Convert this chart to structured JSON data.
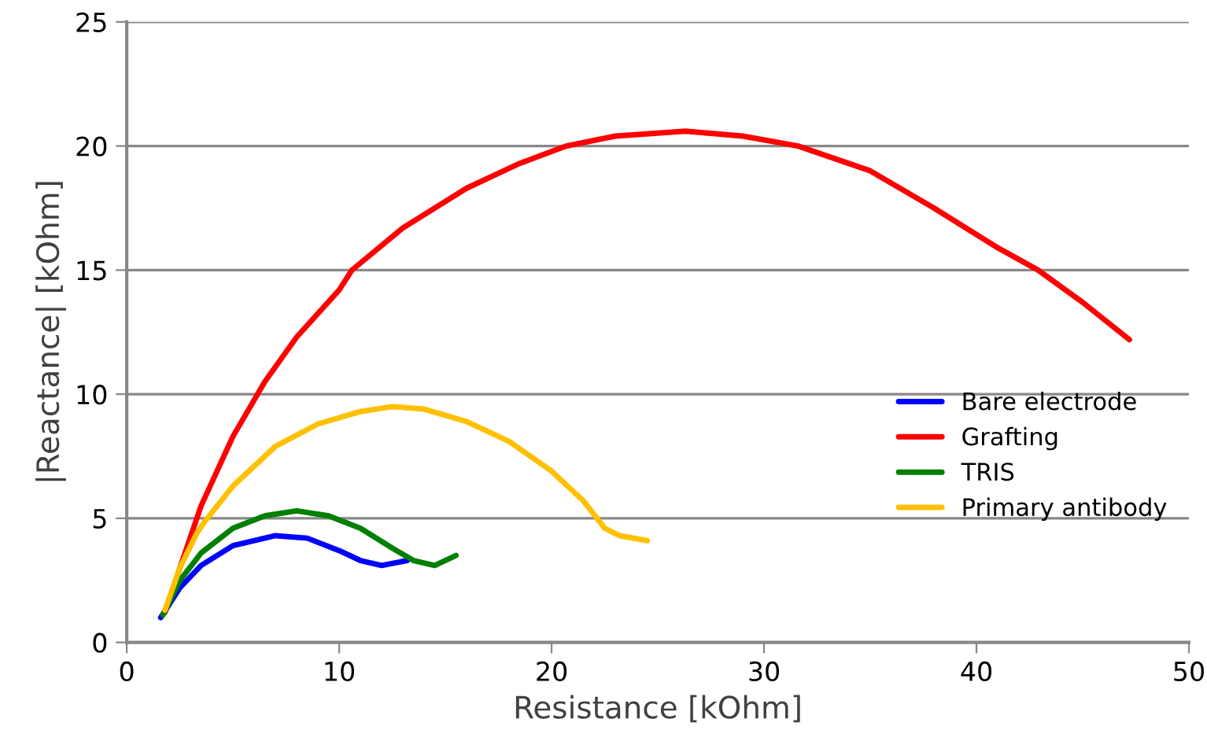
{
  "chart_data": {
    "type": "line",
    "xlabel": "Resistance [kOhm]",
    "ylabel": "|Reactance| [kOhm]",
    "xlim": [
      0,
      50
    ],
    "ylim": [
      0,
      25
    ],
    "xticks": [
      0,
      10,
      20,
      30,
      40,
      50
    ],
    "yticks": [
      0,
      5,
      10,
      15,
      20,
      25
    ],
    "grid": "y",
    "legend": "right",
    "marker": "none",
    "line_style": "solid",
    "series": [
      {
        "name": "Bare electrode",
        "color": "#0000ff",
        "x": [
          1.6,
          2.5,
          3.5,
          5,
          7,
          8.5,
          10,
          11,
          12,
          13.2
        ],
        "values": [
          1.0,
          2.2,
          3.1,
          3.9,
          4.3,
          4.2,
          3.7,
          3.3,
          3.1,
          3.3
        ]
      },
      {
        "name": "Grafting",
        "color": "#ff0000",
        "x": [
          1.8,
          2.5,
          3.5,
          5,
          6.5,
          8,
          10,
          10.6,
          13,
          16,
          18.5,
          20.7,
          23,
          26.3,
          29,
          31.6,
          35,
          38,
          41,
          42.9,
          45,
          47.2
        ],
        "values": [
          1.2,
          3,
          5.5,
          8.3,
          10.5,
          12.3,
          14.2,
          15,
          16.7,
          18.3,
          19.3,
          20,
          20.4,
          20.6,
          20.4,
          20,
          19,
          17.5,
          15.9,
          15,
          13.7,
          12.2
        ]
      },
      {
        "name": "TRIS",
        "color": "#008000",
        "x": [
          1.7,
          2.5,
          3.5,
          5,
          6.5,
          8,
          9.5,
          11,
          12.5,
          13.5,
          14.5,
          15.5
        ],
        "values": [
          1.1,
          2.5,
          3.6,
          4.6,
          5.1,
          5.3,
          5.1,
          4.6,
          3.8,
          3.3,
          3.1,
          3.5
        ]
      },
      {
        "name": "Primary antibody",
        "color": "#ffc000",
        "x": [
          1.8,
          2.5,
          3.3,
          3.7,
          5,
          7,
          9,
          11,
          12.5,
          14,
          16,
          18,
          20,
          21.5,
          22.5,
          23.2,
          24.5
        ],
        "values": [
          1.3,
          3,
          4.4,
          4.9,
          6.3,
          7.9,
          8.8,
          9.3,
          9.5,
          9.4,
          8.9,
          8.1,
          6.9,
          5.7,
          4.6,
          4.3,
          4.1
        ]
      }
    ]
  }
}
